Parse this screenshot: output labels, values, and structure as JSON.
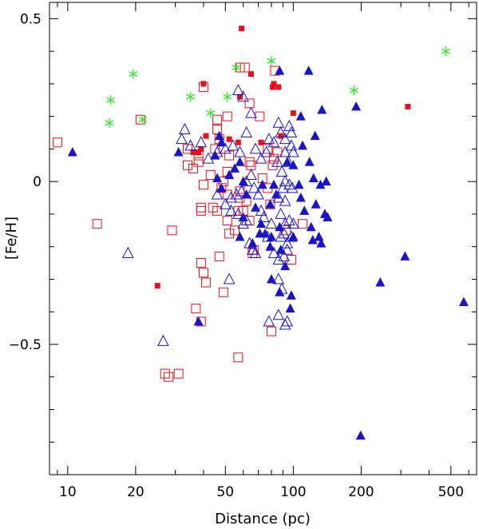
{
  "chart_data": {
    "type": "scatter",
    "title": "",
    "xlabel": "Distance (pc)",
    "ylabel": "[Fe/H]",
    "xscale": "log",
    "xlim": [
      8.3,
      650
    ],
    "ylim": [
      -0.9,
      0.55
    ],
    "x_ticks": [
      10,
      20,
      50,
      100,
      200,
      500
    ],
    "x_tick_labels": [
      "10",
      "20",
      "50",
      "100",
      "200",
      "500"
    ],
    "y_ticks": [
      0.5,
      0,
      -0.5
    ],
    "y_tick_labels": [
      "0.5",
      "0",
      "−0.5"
    ],
    "colors": {
      "red": "#e8101a",
      "blue": "#1a14c8",
      "green": "#2ee82e"
    },
    "series": [
      {
        "name": "filled-squares",
        "marker": "filled-square",
        "color": "#e8101a",
        "points": [
          [
            59,
            0.47
          ],
          [
            40,
            0.3
          ],
          [
            65,
            0.33
          ],
          [
            58,
            0.26
          ],
          [
            81,
            0.29
          ],
          [
            82,
            0.3
          ],
          [
            86,
            0.29
          ],
          [
            100,
            0.21
          ],
          [
            88,
            0.14
          ],
          [
            322,
            0.23
          ],
          [
            41,
            0.14
          ],
          [
            39,
            0.1
          ],
          [
            38,
            0.09
          ],
          [
            36,
            0.09
          ],
          [
            72,
            0.12
          ],
          [
            57,
            0.12
          ],
          [
            52,
            0.13
          ],
          [
            25,
            -0.32
          ]
        ]
      },
      {
        "name": "open-squares",
        "marker": "open-square",
        "color": "#e8101a",
        "points": [
          [
            9,
            0.12
          ],
          [
            13.5,
            -0.13
          ],
          [
            21,
            0.19
          ],
          [
            29,
            -0.15
          ],
          [
            27,
            -0.59
          ],
          [
            28,
            -0.6
          ],
          [
            31,
            -0.59
          ],
          [
            40,
            0.29
          ],
          [
            58,
            0.35
          ],
          [
            61,
            0.35
          ],
          [
            83,
            0.34
          ],
          [
            64,
            0.24
          ],
          [
            71,
            0.2
          ],
          [
            46,
            0.19
          ],
          [
            46,
            0.16
          ],
          [
            51,
            0.2
          ],
          [
            47,
            0.13
          ],
          [
            34,
            0.1
          ],
          [
            34,
            0.05
          ],
          [
            38,
            0.08
          ],
          [
            38,
            0.06
          ],
          [
            36,
            0.04
          ],
          [
            45,
            0.1
          ],
          [
            52,
            0.08
          ],
          [
            43,
            0.02
          ],
          [
            49,
            0.0
          ],
          [
            51,
            0.03
          ],
          [
            40,
            -0.01
          ],
          [
            48,
            -0.02
          ],
          [
            51,
            -0.04
          ],
          [
            44,
            -0.08
          ],
          [
            39,
            -0.08
          ],
          [
            39,
            -0.09
          ],
          [
            46,
            -0.09
          ],
          [
            51,
            -0.12
          ],
          [
            52,
            -0.16
          ],
          [
            58,
            -0.05
          ],
          [
            60,
            -0.09
          ],
          [
            62,
            -0.06
          ],
          [
            57,
            -0.09
          ],
          [
            64,
            -0.12
          ],
          [
            55,
            -0.15
          ],
          [
            39,
            -0.25
          ],
          [
            40,
            -0.28
          ],
          [
            41,
            -0.31
          ],
          [
            37,
            -0.39
          ],
          [
            39,
            -0.43
          ],
          [
            47,
            -0.23
          ],
          [
            49,
            -0.34
          ],
          [
            57,
            -0.54
          ],
          [
            66,
            -0.22
          ],
          [
            67,
            -0.21
          ],
          [
            80,
            -0.46
          ],
          [
            98,
            -0.24
          ],
          [
            64,
            0.06
          ],
          [
            65,
            0.05
          ],
          [
            58,
            -0.03
          ],
          [
            73,
            0.01
          ],
          [
            77,
            0.1
          ],
          [
            81,
            0.05
          ],
          [
            82,
            0.07
          ],
          [
            85,
            0.09
          ],
          [
            77,
            -0.02
          ],
          [
            79,
            -0.07
          ],
          [
            93,
            -0.15
          ],
          [
            110,
            -0.13
          ]
        ]
      },
      {
        "name": "filled-triangles",
        "marker": "filled-triangle",
        "color": "#1a14c8",
        "points": [
          [
            10.5,
            0.09
          ],
          [
            31,
            0.09
          ],
          [
            38,
            -0.43
          ],
          [
            87,
            0.34
          ],
          [
            117,
            0.34
          ],
          [
            108,
            0.2
          ],
          [
            134,
            0.22
          ],
          [
            190,
            0.23
          ],
          [
            110,
            0.11
          ],
          [
            125,
            0.14
          ],
          [
            94,
            0.06
          ],
          [
            118,
            0.06
          ],
          [
            100,
            0.05
          ],
          [
            106,
            -0.01
          ],
          [
            123,
            0.01
          ],
          [
            132,
            -0.01
          ],
          [
            140,
            0.0
          ],
          [
            108,
            -0.05
          ],
          [
            126,
            -0.07
          ],
          [
            138,
            -0.1
          ],
          [
            142,
            -0.11
          ],
          [
            112,
            -0.09
          ],
          [
            120,
            -0.14
          ],
          [
            122,
            -0.18
          ],
          [
            130,
            -0.17
          ],
          [
            133,
            -0.19
          ],
          [
            100,
            -0.17
          ],
          [
            87,
            -0.14
          ],
          [
            79,
            -0.2
          ],
          [
            80,
            -0.17
          ],
          [
            71,
            -0.16
          ],
          [
            66,
            -0.19
          ],
          [
            58,
            -0.17
          ],
          [
            60,
            -0.11
          ],
          [
            80,
            -0.3
          ],
          [
            87,
            -0.34
          ],
          [
            98,
            -0.35
          ],
          [
            97,
            -0.39
          ],
          [
            47,
            0.14
          ],
          [
            48,
            0.12
          ],
          [
            45,
            0.08
          ],
          [
            52,
            0.02
          ],
          [
            55,
            0.04
          ],
          [
            58,
            0.06
          ],
          [
            46,
            0.01
          ],
          [
            48,
            -0.02
          ],
          [
            60,
            0.0
          ],
          [
            62,
            -0.04
          ],
          [
            82,
            -0.01
          ],
          [
            84,
            -0.04
          ],
          [
            79,
            -0.07
          ],
          [
            73,
            -0.01
          ],
          [
            68,
            -0.08
          ],
          [
            72,
            -0.13
          ],
          [
            75,
            -0.16
          ],
          [
            88,
            -0.21
          ],
          [
            92,
            -0.26
          ],
          [
            199,
            -0.78
          ],
          [
            243,
            -0.31
          ],
          [
            313,
            -0.23
          ],
          [
            570,
            -0.37
          ]
        ]
      },
      {
        "name": "open-triangles",
        "marker": "open-triangle",
        "color": "#1a14c8",
        "points": [
          [
            18.5,
            -0.22
          ],
          [
            26.5,
            -0.49
          ],
          [
            33,
            0.16
          ],
          [
            32,
            0.13
          ],
          [
            35,
            0.11
          ],
          [
            39,
            0.12
          ],
          [
            42,
            0.07
          ],
          [
            46,
            0.09
          ],
          [
            50,
            0.1
          ],
          [
            54,
            0.11
          ],
          [
            58,
            0.09
          ],
          [
            57,
            0.28
          ],
          [
            60,
            0.26
          ],
          [
            65,
            0.21
          ],
          [
            62,
            0.15
          ],
          [
            68,
            0.1
          ],
          [
            72,
            0.07
          ],
          [
            76,
            0.09
          ],
          [
            78,
            0.13
          ],
          [
            82,
            0.12
          ],
          [
            86,
            0.18
          ],
          [
            88,
            0.15
          ],
          [
            92,
            0.13
          ],
          [
            96,
            0.17
          ],
          [
            98,
            0.15
          ],
          [
            92,
            0.09
          ],
          [
            95,
            0.06
          ],
          [
            98,
            0.11
          ],
          [
            100,
            0.09
          ],
          [
            85,
            0.06
          ],
          [
            89,
            0.03
          ],
          [
            92,
            0.0
          ],
          [
            96,
            -0.01
          ],
          [
            99,
            -0.02
          ],
          [
            86,
            -0.05
          ],
          [
            90,
            -0.02
          ],
          [
            92,
            -0.06
          ],
          [
            88,
            -0.1
          ],
          [
            92,
            -0.13
          ],
          [
            96,
            -0.12
          ],
          [
            100,
            -0.13
          ],
          [
            88,
            -0.17
          ],
          [
            91,
            -0.16
          ],
          [
            94,
            -0.19
          ],
          [
            98,
            -0.17
          ],
          [
            82,
            -0.22
          ],
          [
            86,
            -0.24
          ],
          [
            91,
            -0.23
          ],
          [
            94,
            -0.21
          ],
          [
            77,
            -0.17
          ],
          [
            80,
            -0.13
          ],
          [
            74,
            -0.11
          ],
          [
            72,
            -0.09
          ],
          [
            70,
            -0.04
          ],
          [
            67,
            -0.02
          ],
          [
            65,
            0.02
          ],
          [
            62,
            0.0
          ],
          [
            59,
            -0.03
          ],
          [
            56,
            -0.04
          ],
          [
            53,
            -0.05
          ],
          [
            57,
            -0.1
          ],
          [
            60,
            -0.13
          ],
          [
            62,
            -0.12
          ],
          [
            64,
            -0.19
          ],
          [
            66,
            -0.21
          ],
          [
            68,
            -0.22
          ],
          [
            52,
            -0.3
          ],
          [
            86,
            -0.3
          ],
          [
            89,
            -0.33
          ],
          [
            94,
            -0.43
          ],
          [
            92,
            -0.44
          ],
          [
            78,
            -0.43
          ],
          [
            86,
            -0.41
          ],
          [
            46,
            -0.04
          ],
          [
            50,
            -0.07
          ],
          [
            53,
            -0.09
          ]
        ]
      },
      {
        "name": "asterisks",
        "marker": "asterisk",
        "color": "#2ee82e",
        "points": [
          [
            15.5,
            0.25
          ],
          [
            15.3,
            0.18
          ],
          [
            19.5,
            0.33
          ],
          [
            21.5,
            0.19
          ],
          [
            35,
            0.26
          ],
          [
            43,
            0.21
          ],
          [
            51,
            0.26
          ],
          [
            56,
            0.35
          ],
          [
            80,
            0.37
          ],
          [
            186,
            0.28
          ],
          [
            475,
            0.4
          ]
        ]
      }
    ]
  }
}
